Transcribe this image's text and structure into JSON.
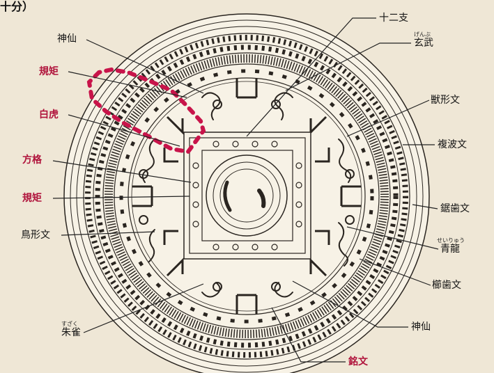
{
  "top_fragment": "十分）",
  "labels": {
    "l_shinsen_top": "神仙",
    "l_kiku1": "規矩",
    "l_byakko": "白虎",
    "l_houkaku": "方格",
    "l_kiku2": "規矩",
    "l_choukei": "鳥形文",
    "l_suzaku": "朱雀",
    "l_juunishi": "十二支",
    "l_genbu": "玄武",
    "l_juukei": "獣形文",
    "l_fukuha": "複波文",
    "l_kyoshi": "鋸歯文",
    "l_seiryu": "青龍",
    "l_kushi": "櫛歯文",
    "l_shinsen_bot": "神仙",
    "l_meibun": "銘文"
  },
  "ruby": {
    "genbu": "げんぶ",
    "seiryu": "せいりゅう",
    "suzaku": "すざく"
  },
  "colors": {
    "background": "#efe7d6",
    "ink": "#2a2520",
    "accent": "#b0143c"
  }
}
